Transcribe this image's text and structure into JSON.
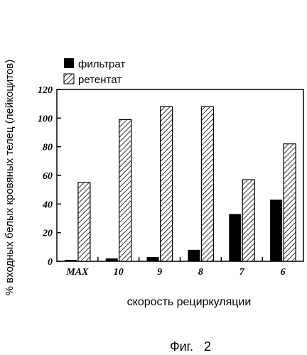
{
  "chart_data": {
    "type": "bar",
    "title": "",
    "xlabel": "скорость рециркуляции",
    "ylabel": "% входных белых кровяных телец (лейкоцитов)",
    "categories": [
      "MAX",
      "10",
      "9",
      "8",
      "7",
      "6"
    ],
    "series": [
      {
        "name": "фильтрат",
        "values": [
          1,
          2,
          3,
          8,
          33,
          43
        ],
        "color": "#000000",
        "pattern": "solid"
      },
      {
        "name": "ретентат",
        "values": [
          55,
          99,
          108,
          108,
          57,
          82
        ],
        "color": "#000000",
        "pattern": "diagonal-hatch"
      }
    ],
    "yticks": [
      0,
      20,
      40,
      60,
      80,
      100,
      120
    ],
    "ylim": [
      0,
      120
    ],
    "grid": false,
    "legend": "top-left"
  },
  "caption": "Фиг.   2"
}
